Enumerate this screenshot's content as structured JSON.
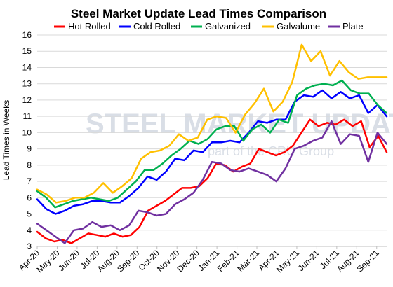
{
  "chart_data": {
    "type": "line",
    "title": "Steel Market Update Lead Times Comparison",
    "ylabel": "Lead Times in Weeks",
    "xlabel": "",
    "ylim": [
      3,
      16
    ],
    "yticks": [
      3,
      4,
      5,
      6,
      7,
      8,
      9,
      10,
      11,
      12,
      13,
      14,
      15,
      16
    ],
    "grid": true,
    "legend_position": "top",
    "watermark": {
      "main": "STEEL MARKET UPDATE",
      "sub": "part of the CRU Group"
    },
    "x_tick_labels": [
      "Apr-20",
      "May-20",
      "Jun-20",
      "Jul-20",
      "Aug-20",
      "Sep-20",
      "Oct-20",
      "Nov-20",
      "Dec-20",
      "Jan-21",
      "Feb-21",
      "Mar-21",
      "Apr-21",
      "May-21",
      "Jun-21",
      "Jul-21",
      "Aug-21",
      "Sep-21"
    ],
    "points_per_month": 2,
    "series": [
      {
        "name": "Hot Rolled",
        "color": "#ff0000",
        "values": [
          3.9,
          3.5,
          3.3,
          3.4,
          3.2,
          3.5,
          3.8,
          3.7,
          3.6,
          3.8,
          3.6,
          3.7,
          4.2,
          5.2,
          5.5,
          5.8,
          6.2,
          6.6,
          6.6,
          6.7,
          7.2,
          8.1,
          8.0,
          7.6,
          7.9,
          8.1,
          9.0,
          8.8,
          8.6,
          8.8,
          9.2,
          10.0,
          10.8,
          10.4,
          10.6,
          10.5,
          10.8,
          10.4,
          10.7,
          9.1,
          9.8,
          8.8
        ]
      },
      {
        "name": "Cold Rolled",
        "color": "#0000ff",
        "values": [
          5.9,
          5.3,
          5.0,
          5.2,
          5.5,
          5.6,
          5.8,
          5.8,
          5.7,
          5.7,
          6.1,
          6.6,
          7.3,
          7.1,
          7.6,
          8.4,
          8.3,
          8.9,
          8.8,
          9.4,
          9.4,
          9.5,
          9.4,
          10.0,
          10.7,
          10.6,
          10.8,
          10.8,
          11.9,
          12.3,
          12.2,
          12.6,
          12.1,
          12.5,
          12.1,
          12.3,
          11.2,
          11.7,
          11.0
        ]
      },
      {
        "name": "Galvanized",
        "color": "#00b050",
        "values": [
          6.4,
          6.0,
          5.4,
          5.6,
          5.8,
          5.9,
          6.0,
          5.9,
          5.8,
          6.0,
          6.5,
          7.0,
          7.7,
          7.7,
          8.1,
          8.6,
          9.0,
          9.5,
          9.3,
          9.6,
          10.2,
          10.4,
          10.4,
          9.5,
          10.2,
          10.5,
          10.0,
          10.8,
          10.6,
          12.3,
          12.7,
          12.9,
          13.0,
          12.9,
          13.2,
          12.6,
          12.4,
          12.4,
          11.7,
          11.2
        ]
      },
      {
        "name": "Galvalume",
        "color": "#ffc000",
        "values": [
          6.5,
          6.2,
          5.7,
          5.8,
          6.0,
          6.0,
          6.3,
          6.9,
          6.3,
          6.7,
          7.2,
          8.4,
          8.8,
          8.9,
          9.2,
          9.9,
          9.5,
          9.7,
          10.8,
          11.0,
          10.9,
          10.0,
          11.1,
          11.8,
          12.7,
          11.3,
          11.9,
          13.1,
          15.4,
          14.4,
          15.0,
          13.5,
          14.4,
          13.7,
          13.3,
          13.4,
          13.4,
          13.4
        ]
      },
      {
        "name": "Plate",
        "color": "#7030a0",
        "values": [
          4.4,
          4.0,
          3.6,
          3.2,
          4.0,
          4.1,
          4.5,
          4.2,
          4.3,
          4.0,
          4.3,
          5.2,
          5.1,
          4.9,
          5.0,
          5.6,
          5.9,
          6.3,
          7.1,
          8.2,
          8.1,
          7.7,
          7.6,
          7.8,
          7.6,
          7.4,
          7.0,
          7.8,
          9.0,
          9.2,
          9.5,
          9.7,
          10.7,
          9.3,
          9.9,
          9.8,
          8.2,
          10.0,
          9.3
        ]
      }
    ]
  }
}
